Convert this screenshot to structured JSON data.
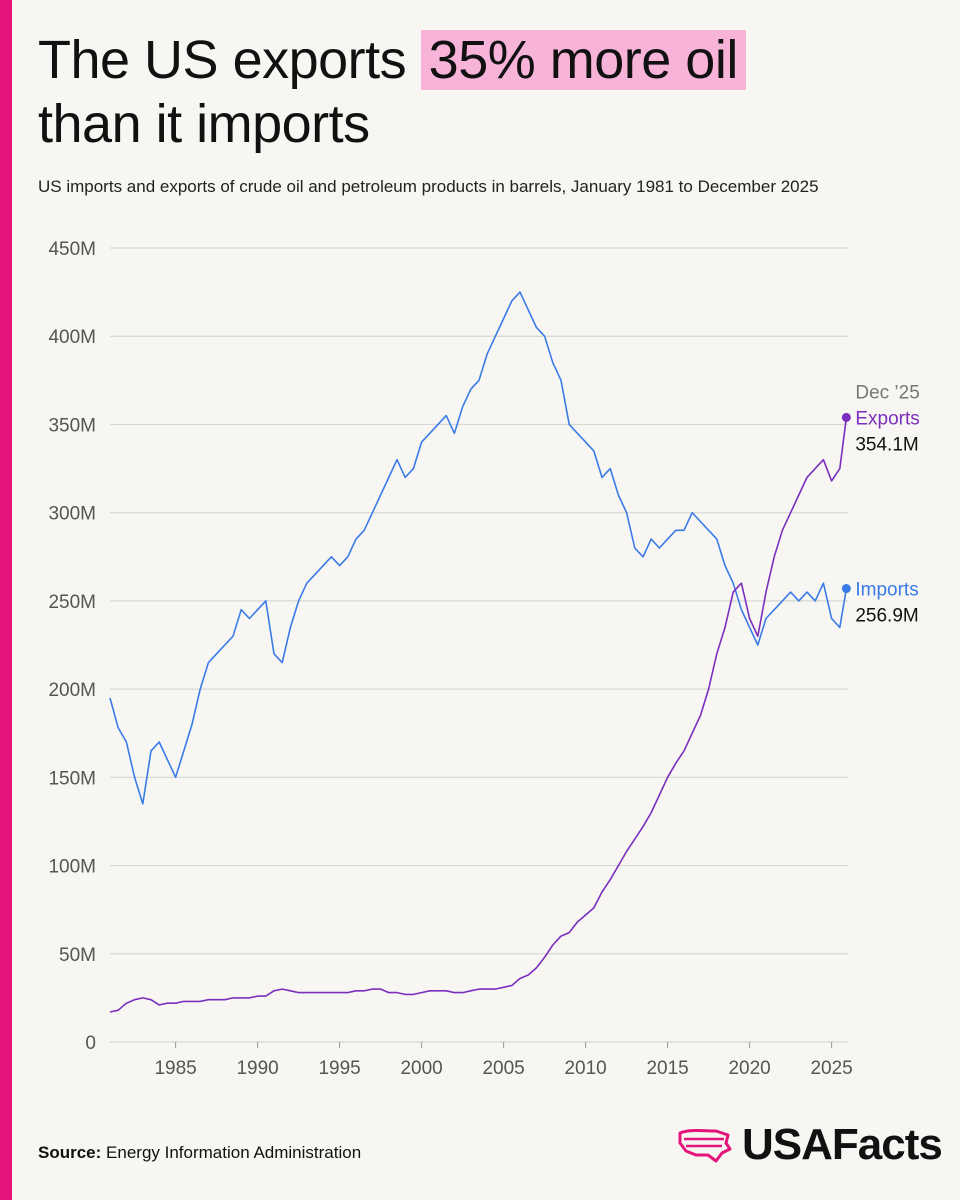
{
  "header": {
    "title_pre": "The US exports",
    "title_highlight": "35% more oil",
    "title_post": "than it imports",
    "subtitle": "US imports and exports of crude oil and petroleum products in barrels, January 1981 to December 2025"
  },
  "colors": {
    "exports": "#7b2fbe",
    "imports": "#3a7be8",
    "accent": "#e5147b",
    "highlight": "#f7b3d8"
  },
  "chart_data": {
    "type": "line",
    "title": "The US exports 35% more oil than it imports",
    "xlabel": "",
    "ylabel": "",
    "xlim": [
      1981,
      2026
    ],
    "ylim": [
      0,
      450
    ],
    "y_unit": "M barrels",
    "y_ticks": [
      "0",
      "50M",
      "100M",
      "150M",
      "200M",
      "250M",
      "300M",
      "350M",
      "400M",
      "450M"
    ],
    "x_ticks": [
      "1985",
      "1990",
      "1995",
      "2000",
      "2005",
      "2010",
      "2015",
      "2020",
      "2025"
    ],
    "grid": true,
    "series": [
      {
        "name": "Imports",
        "x": [
          1981.0,
          1981.5,
          1982.0,
          1982.5,
          1983.0,
          1983.5,
          1984.0,
          1984.5,
          1985.0,
          1985.5,
          1986.0,
          1986.5,
          1987.0,
          1987.5,
          1988.0,
          1988.5,
          1989.0,
          1989.5,
          1990.0,
          1990.5,
          1991.0,
          1991.5,
          1992.0,
          1992.5,
          1993.0,
          1993.5,
          1994.0,
          1994.5,
          1995.0,
          1995.5,
          1996.0,
          1996.5,
          1997.0,
          1997.5,
          1998.0,
          1998.5,
          1999.0,
          1999.5,
          2000.0,
          2000.5,
          2001.0,
          2001.5,
          2002.0,
          2002.5,
          2003.0,
          2003.5,
          2004.0,
          2004.5,
          2005.0,
          2005.5,
          2006.0,
          2006.5,
          2007.0,
          2007.5,
          2008.0,
          2008.5,
          2009.0,
          2009.5,
          2010.0,
          2010.5,
          2011.0,
          2011.5,
          2012.0,
          2012.5,
          2013.0,
          2013.5,
          2014.0,
          2014.5,
          2015.0,
          2015.5,
          2016.0,
          2016.5,
          2017.0,
          2017.5,
          2018.0,
          2018.5,
          2019.0,
          2019.5,
          2020.0,
          2020.5,
          2021.0,
          2021.5,
          2022.0,
          2022.5,
          2023.0,
          2023.5,
          2024.0,
          2024.5,
          2025.0,
          2025.5,
          2025.9
        ],
        "values": [
          195,
          178,
          170,
          150,
          135,
          165,
          170,
          160,
          150,
          165,
          180,
          200,
          215,
          220,
          225,
          230,
          245,
          240,
          245,
          250,
          220,
          215,
          235,
          250,
          260,
          265,
          270,
          275,
          270,
          275,
          285,
          290,
          300,
          310,
          320,
          330,
          320,
          325,
          340,
          345,
          350,
          355,
          345,
          360,
          370,
          375,
          390,
          400,
          410,
          420,
          425,
          415,
          405,
          400,
          385,
          375,
          350,
          345,
          340,
          335,
          320,
          325,
          310,
          300,
          280,
          275,
          285,
          280,
          285,
          290,
          290,
          300,
          295,
          290,
          285,
          270,
          260,
          245,
          235,
          225,
          240,
          245,
          250,
          255,
          250,
          255,
          250,
          260,
          240,
          235,
          257
        ],
        "label": "Imports",
        "end_value_label": "256.9M"
      },
      {
        "name": "Exports",
        "x": [
          1981.0,
          1981.5,
          1982.0,
          1982.5,
          1983.0,
          1983.5,
          1984.0,
          1984.5,
          1985.0,
          1985.5,
          1986.0,
          1986.5,
          1987.0,
          1987.5,
          1988.0,
          1988.5,
          1989.0,
          1989.5,
          1990.0,
          1990.5,
          1991.0,
          1991.5,
          1992.0,
          1992.5,
          1993.0,
          1993.5,
          1994.0,
          1994.5,
          1995.0,
          1995.5,
          1996.0,
          1996.5,
          1997.0,
          1997.5,
          1998.0,
          1998.5,
          1999.0,
          1999.5,
          2000.0,
          2000.5,
          2001.0,
          2001.5,
          2002.0,
          2002.5,
          2003.0,
          2003.5,
          2004.0,
          2004.5,
          2005.0,
          2005.5,
          2006.0,
          2006.5,
          2007.0,
          2007.5,
          2008.0,
          2008.5,
          2009.0,
          2009.5,
          2010.0,
          2010.5,
          2011.0,
          2011.5,
          2012.0,
          2012.5,
          2013.0,
          2013.5,
          2014.0,
          2014.5,
          2015.0,
          2015.5,
          2016.0,
          2016.5,
          2017.0,
          2017.5,
          2018.0,
          2018.5,
          2019.0,
          2019.5,
          2020.0,
          2020.5,
          2021.0,
          2021.5,
          2022.0,
          2022.5,
          2023.0,
          2023.5,
          2024.0,
          2024.5,
          2025.0,
          2025.5,
          2025.9
        ],
        "values": [
          17,
          18,
          22,
          24,
          25,
          24,
          21,
          22,
          22,
          23,
          23,
          23,
          24,
          24,
          24,
          25,
          25,
          25,
          26,
          26,
          29,
          30,
          29,
          28,
          28,
          28,
          28,
          28,
          28,
          28,
          29,
          29,
          30,
          30,
          28,
          28,
          27,
          27,
          28,
          29,
          29,
          29,
          28,
          28,
          29,
          30,
          30,
          30,
          31,
          32,
          36,
          38,
          42,
          48,
          55,
          60,
          62,
          68,
          72,
          76,
          85,
          92,
          100,
          108,
          115,
          122,
          130,
          140,
          150,
          158,
          165,
          175,
          185,
          200,
          220,
          235,
          255,
          260,
          240,
          230,
          255,
          275,
          290,
          300,
          310,
          320,
          325,
          330,
          318,
          325,
          354
        ],
        "label": "Exports",
        "end_value_label": "354.1M",
        "end_date_label": "Dec ’25"
      }
    ]
  },
  "footer": {
    "source_label": "Source:",
    "source_text": "Energy Information Administration",
    "logo_text": "USAFacts"
  }
}
